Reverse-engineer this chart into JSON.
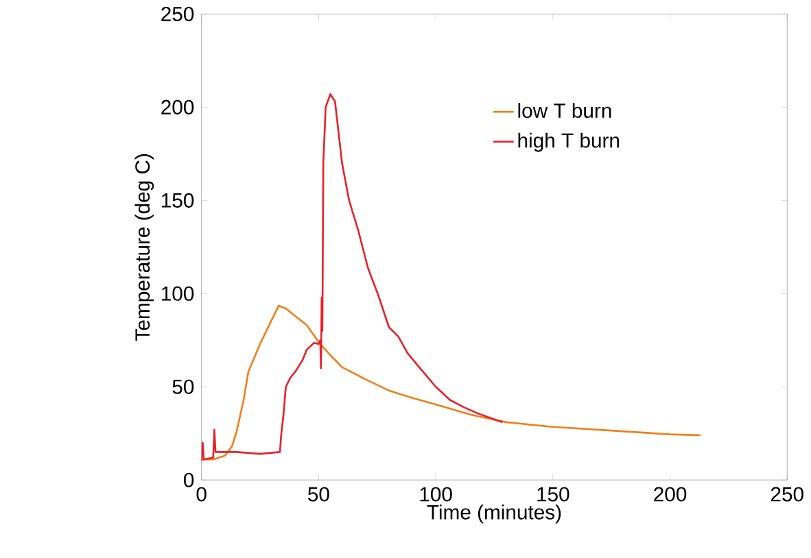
{
  "chart_data": {
    "type": "line",
    "xlabel": "Time (minutes)",
    "ylabel": "Temperature (deg C)",
    "xlim": [
      0,
      250
    ],
    "ylim": [
      0,
      250
    ],
    "xticks": [
      0,
      50,
      100,
      150,
      200,
      250
    ],
    "yticks": [
      0,
      50,
      100,
      150,
      200,
      250
    ],
    "grid": false,
    "legend": "top right",
    "marker": "none",
    "line_style": "solid",
    "series": [
      {
        "name": "low T burn",
        "color": "#f07f1a",
        "x": [
          0,
          5,
          10,
          13,
          15,
          18,
          20,
          25,
          30,
          33,
          36,
          40,
          45,
          50,
          55,
          60,
          70,
          80,
          90,
          100,
          115,
          130,
          150,
          175,
          200,
          213
        ],
        "values": [
          11,
          11,
          13,
          18,
          26,
          43,
          58,
          73,
          86,
          93.5,
          92,
          88,
          83,
          74,
          67,
          60.5,
          54,
          48,
          44,
          40.5,
          35,
          31,
          28.5,
          26.5,
          24.5,
          24
        ]
      },
      {
        "name": "high T burn",
        "color": "#e8212a",
        "x": [
          0,
          0.5,
          1,
          5,
          5.5,
          6,
          8,
          15,
          25,
          33.5,
          34,
          35,
          36,
          38,
          40,
          43,
          45,
          48,
          50,
          50.7,
          51,
          51.3,
          51.6,
          52,
          53,
          55,
          57,
          60,
          63,
          67,
          71,
          75.5,
          80,
          84,
          88,
          93,
          100,
          106,
          112,
          118,
          124,
          128.5
        ],
        "values": [
          10,
          20,
          11,
          12,
          27,
          15,
          15,
          15,
          14,
          15,
          24,
          35,
          50,
          55,
          58,
          64,
          70,
          73.5,
          73,
          75,
          60,
          98,
          80,
          170,
          200,
          207,
          203,
          170,
          150,
          133.5,
          114,
          99,
          82,
          77,
          68,
          60.4,
          50,
          43,
          39,
          35.7,
          33,
          31
        ]
      }
    ]
  }
}
